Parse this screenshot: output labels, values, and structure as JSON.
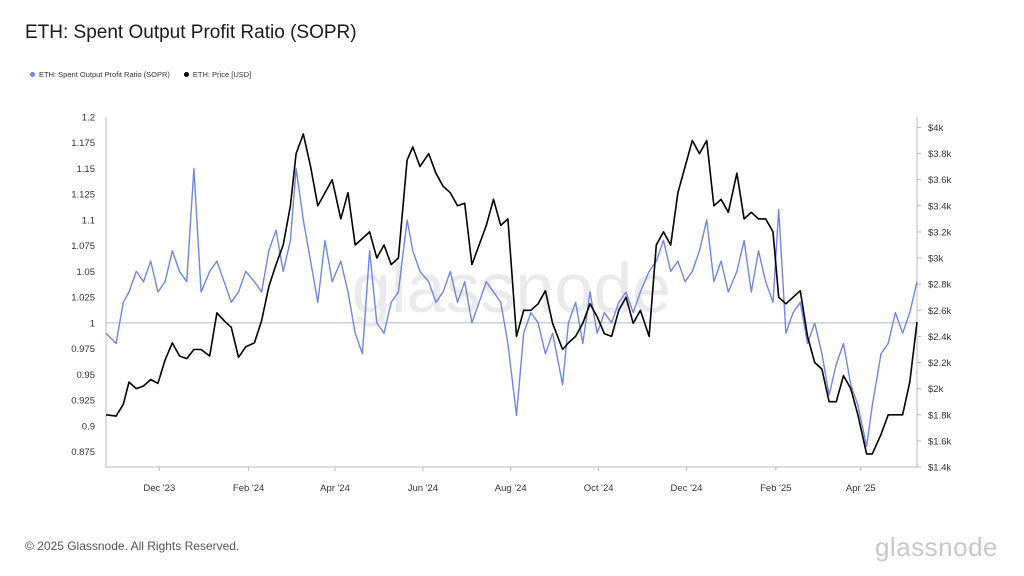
{
  "title": "ETH: Spent Output Profit Ratio (SOPR)",
  "legend": {
    "sopr_label": "ETH: Spent Output Profit Ratio (SOPR)",
    "price_label": "ETH: Price [USD]"
  },
  "footer": "© 2025 Glassnode. All Rights Reserved.",
  "logo_text": "glassnode",
  "colors": {
    "sopr": "#6f86e3",
    "price": "#000000",
    "baseline": "#aeb6cc"
  },
  "chart_data": {
    "type": "line",
    "title": "ETH: Spent Output Profit Ratio (SOPR)",
    "x_ticks": [
      "Dec '23",
      "Feb '24",
      "Apr '24",
      "Jun '24",
      "Aug '24",
      "Oct '24",
      "Dec '24",
      "Feb '25",
      "Apr '25"
    ],
    "x_range": [
      "2023-10-25",
      "2025-05-10"
    ],
    "y_left": {
      "ticks": [
        "0.875",
        "0.9",
        "0.925",
        "0.95",
        "0.975",
        "1",
        "1.025",
        "1.05",
        "1.075",
        "1.1",
        "1.125",
        "1.15",
        "1.175",
        "1.2"
      ],
      "range": [
        0.86,
        1.2
      ]
    },
    "y_right": {
      "ticks": [
        "$1.4k",
        "$1.6k",
        "$1.8k",
        "$2k",
        "$2.2k",
        "$2.4k",
        "$2.6k",
        "$2.8k",
        "$3k",
        "$3.2k",
        "$3.4k",
        "$3.6k",
        "$3.8k",
        "$4k"
      ],
      "range": [
        1400,
        4080
      ]
    },
    "series": [
      {
        "name": "ETH: Spent Output Profit Ratio (SOPR)",
        "axis": "left",
        "x": [
          "2023-10-25",
          "2023-11-01",
          "2023-11-06",
          "2023-11-10",
          "2023-11-15",
          "2023-11-20",
          "2023-11-25",
          "2023-11-30",
          "2023-12-05",
          "2023-12-10",
          "2023-12-15",
          "2023-12-20",
          "2023-12-25",
          "2023-12-30",
          "2024-01-05",
          "2024-01-10",
          "2024-01-15",
          "2024-01-20",
          "2024-01-25",
          "2024-01-30",
          "2024-02-05",
          "2024-02-10",
          "2024-02-15",
          "2024-02-20",
          "2024-02-25",
          "2024-03-01",
          "2024-03-05",
          "2024-03-10",
          "2024-03-15",
          "2024-03-20",
          "2024-03-25",
          "2024-03-30",
          "2024-04-05",
          "2024-04-10",
          "2024-04-15",
          "2024-04-20",
          "2024-04-25",
          "2024-04-30",
          "2024-05-05",
          "2024-05-10",
          "2024-05-15",
          "2024-05-21",
          "2024-05-25",
          "2024-05-30",
          "2024-06-05",
          "2024-06-10",
          "2024-06-15",
          "2024-06-20",
          "2024-06-25",
          "2024-06-30",
          "2024-07-05",
          "2024-07-10",
          "2024-07-15",
          "2024-07-20",
          "2024-07-25",
          "2024-07-30",
          "2024-08-05",
          "2024-08-10",
          "2024-08-15",
          "2024-08-20",
          "2024-08-25",
          "2024-08-30",
          "2024-09-06",
          "2024-09-10",
          "2024-09-15",
          "2024-09-20",
          "2024-09-25",
          "2024-09-30",
          "2024-10-05",
          "2024-10-10",
          "2024-10-15",
          "2024-10-20",
          "2024-10-25",
          "2024-10-30",
          "2024-11-05",
          "2024-11-10",
          "2024-11-15",
          "2024-11-20",
          "2024-11-25",
          "2024-11-30",
          "2024-12-05",
          "2024-12-10",
          "2024-12-15",
          "2024-12-20",
          "2024-12-25",
          "2024-12-30",
          "2025-01-05",
          "2025-01-10",
          "2025-01-15",
          "2025-01-20",
          "2025-01-25",
          "2025-01-30",
          "2025-02-03",
          "2025-02-08",
          "2025-02-13",
          "2025-02-18",
          "2025-02-23",
          "2025-02-28",
          "2025-03-05",
          "2025-03-10",
          "2025-03-15",
          "2025-03-20",
          "2025-03-25",
          "2025-03-30",
          "2025-04-05",
          "2025-04-09",
          "2025-04-15",
          "2025-04-20",
          "2025-04-25",
          "2025-04-30",
          "2025-05-05",
          "2025-05-10"
        ],
        "values": [
          0.99,
          0.98,
          1.02,
          1.03,
          1.05,
          1.04,
          1.06,
          1.03,
          1.04,
          1.07,
          1.05,
          1.04,
          1.15,
          1.03,
          1.05,
          1.06,
          1.04,
          1.02,
          1.03,
          1.05,
          1.04,
          1.03,
          1.07,
          1.09,
          1.05,
          1.08,
          1.15,
          1.1,
          1.06,
          1.02,
          1.08,
          1.04,
          1.06,
          1.03,
          0.99,
          0.97,
          1.07,
          1.0,
          0.99,
          1.02,
          1.03,
          1.1,
          1.07,
          1.05,
          1.04,
          1.02,
          1.03,
          1.05,
          1.02,
          1.04,
          1.0,
          1.02,
          1.04,
          1.03,
          1.02,
          0.98,
          0.91,
          0.99,
          1.01,
          1.0,
          0.97,
          0.99,
          0.94,
          1.0,
          1.02,
          0.98,
          1.03,
          0.99,
          1.01,
          1.0,
          1.02,
          1.03,
          1.01,
          1.03,
          1.05,
          1.06,
          1.08,
          1.05,
          1.06,
          1.04,
          1.05,
          1.07,
          1.1,
          1.04,
          1.06,
          1.03,
          1.05,
          1.08,
          1.03,
          1.07,
          1.04,
          1.02,
          1.11,
          0.99,
          1.01,
          1.02,
          0.98,
          1.0,
          0.97,
          0.93,
          0.96,
          0.98,
          0.94,
          0.92,
          0.88,
          0.92,
          0.97,
          0.98,
          1.01,
          0.99,
          1.01,
          1.04
        ]
      },
      {
        "name": "ETH: Price [USD]",
        "axis": "right",
        "x": [
          "2023-10-25",
          "2023-11-01",
          "2023-11-06",
          "2023-11-10",
          "2023-11-15",
          "2023-11-20",
          "2023-11-25",
          "2023-11-30",
          "2023-12-05",
          "2023-12-10",
          "2023-12-15",
          "2023-12-20",
          "2023-12-25",
          "2023-12-30",
          "2024-01-05",
          "2024-01-10",
          "2024-01-15",
          "2024-01-20",
          "2024-01-25",
          "2024-01-30",
          "2024-02-05",
          "2024-02-10",
          "2024-02-15",
          "2024-02-20",
          "2024-02-25",
          "2024-03-01",
          "2024-03-05",
          "2024-03-10",
          "2024-03-15",
          "2024-03-20",
          "2024-03-25",
          "2024-03-30",
          "2024-04-05",
          "2024-04-10",
          "2024-04-15",
          "2024-04-20",
          "2024-04-25",
          "2024-04-30",
          "2024-05-05",
          "2024-05-10",
          "2024-05-15",
          "2024-05-21",
          "2024-05-25",
          "2024-05-30",
          "2024-06-05",
          "2024-06-10",
          "2024-06-15",
          "2024-06-20",
          "2024-06-25",
          "2024-06-30",
          "2024-07-05",
          "2024-07-10",
          "2024-07-15",
          "2024-07-20",
          "2024-07-25",
          "2024-07-30",
          "2024-08-05",
          "2024-08-10",
          "2024-08-15",
          "2024-08-20",
          "2024-08-25",
          "2024-08-30",
          "2024-09-06",
          "2024-09-10",
          "2024-09-15",
          "2024-09-20",
          "2024-09-25",
          "2024-09-30",
          "2024-10-05",
          "2024-10-10",
          "2024-10-15",
          "2024-10-20",
          "2024-10-25",
          "2024-10-30",
          "2024-11-05",
          "2024-11-10",
          "2024-11-15",
          "2024-11-20",
          "2024-11-25",
          "2024-11-30",
          "2024-12-05",
          "2024-12-10",
          "2024-12-15",
          "2024-12-20",
          "2024-12-25",
          "2024-12-30",
          "2025-01-05",
          "2025-01-10",
          "2025-01-15",
          "2025-01-20",
          "2025-01-25",
          "2025-01-30",
          "2025-02-03",
          "2025-02-08",
          "2025-02-13",
          "2025-02-18",
          "2025-02-23",
          "2025-02-28",
          "2025-03-05",
          "2025-03-10",
          "2025-03-15",
          "2025-03-20",
          "2025-03-25",
          "2025-03-30",
          "2025-04-05",
          "2025-04-09",
          "2025-04-15",
          "2025-04-20",
          "2025-04-25",
          "2025-04-30",
          "2025-05-05",
          "2025-05-10"
        ],
        "values": [
          1800,
          1790,
          1880,
          2050,
          2000,
          2020,
          2070,
          2040,
          2220,
          2350,
          2250,
          2230,
          2300,
          2300,
          2250,
          2580,
          2520,
          2470,
          2240,
          2320,
          2350,
          2520,
          2780,
          2950,
          3100,
          3400,
          3800,
          3950,
          3700,
          3400,
          3500,
          3600,
          3300,
          3500,
          3100,
          3150,
          3200,
          3000,
          3100,
          2950,
          3000,
          3750,
          3850,
          3700,
          3800,
          3650,
          3550,
          3500,
          3400,
          3420,
          2950,
          3100,
          3250,
          3450,
          3250,
          3300,
          2400,
          2600,
          2600,
          2650,
          2750,
          2500,
          2300,
          2350,
          2400,
          2500,
          2650,
          2550,
          2420,
          2400,
          2600,
          2700,
          2500,
          2600,
          2400,
          3100,
          3200,
          3100,
          3500,
          3700,
          3900,
          3800,
          3900,
          3400,
          3450,
          3350,
          3650,
          3300,
          3350,
          3300,
          3300,
          3200,
          2700,
          2650,
          2700,
          2750,
          2400,
          2200,
          2150,
          1900,
          1900,
          2100,
          2000,
          1800,
          1500,
          1500,
          1650,
          1800,
          1800,
          1800,
          2050,
          2510
        ]
      }
    ]
  }
}
